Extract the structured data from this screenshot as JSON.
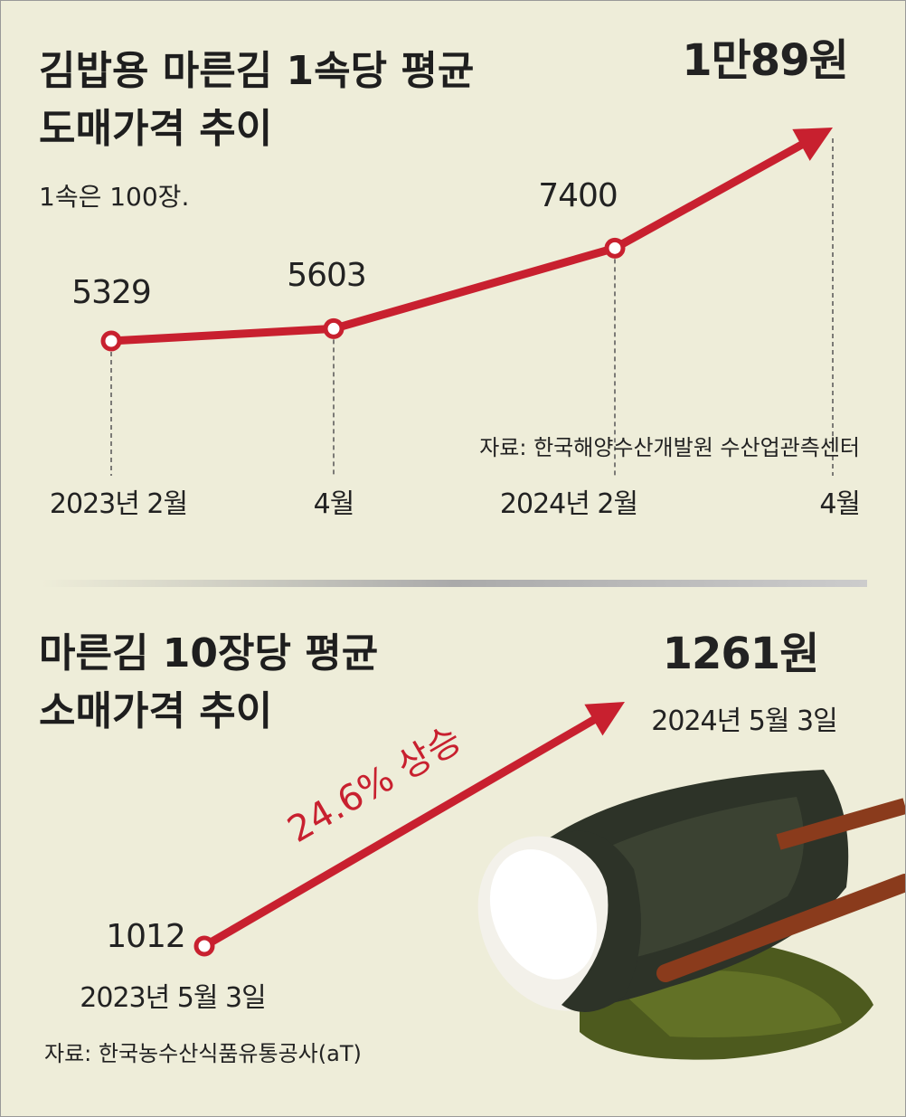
{
  "chart_data": [
    {
      "type": "line",
      "title": "김밥용 마른김 1속당 평균 도매가격 추이",
      "subtitle": "1속은 100장.",
      "categories": [
        "2023년 2월",
        "4월",
        "2024년 2월",
        "4월"
      ],
      "values": [
        5329,
        5603,
        7400,
        10089
      ],
      "value_labels": [
        "5329",
        "5603",
        "7400",
        "1만89원"
      ],
      "color": "#c8202f",
      "source": "자료: 한국해양수산개발원 수산업관측센터"
    },
    {
      "type": "line",
      "title": "마른김 10장당 평균 소매가격 추이",
      "categories": [
        "2023년 5월 3일",
        "2024년 5월 3일"
      ],
      "values": [
        1012,
        1261
      ],
      "value_labels": [
        "1012",
        "1261원"
      ],
      "color": "#c8202f",
      "annotation": "24.6% 상승",
      "source": "자료: 한국농수산식품유통공사(aT)"
    }
  ]
}
